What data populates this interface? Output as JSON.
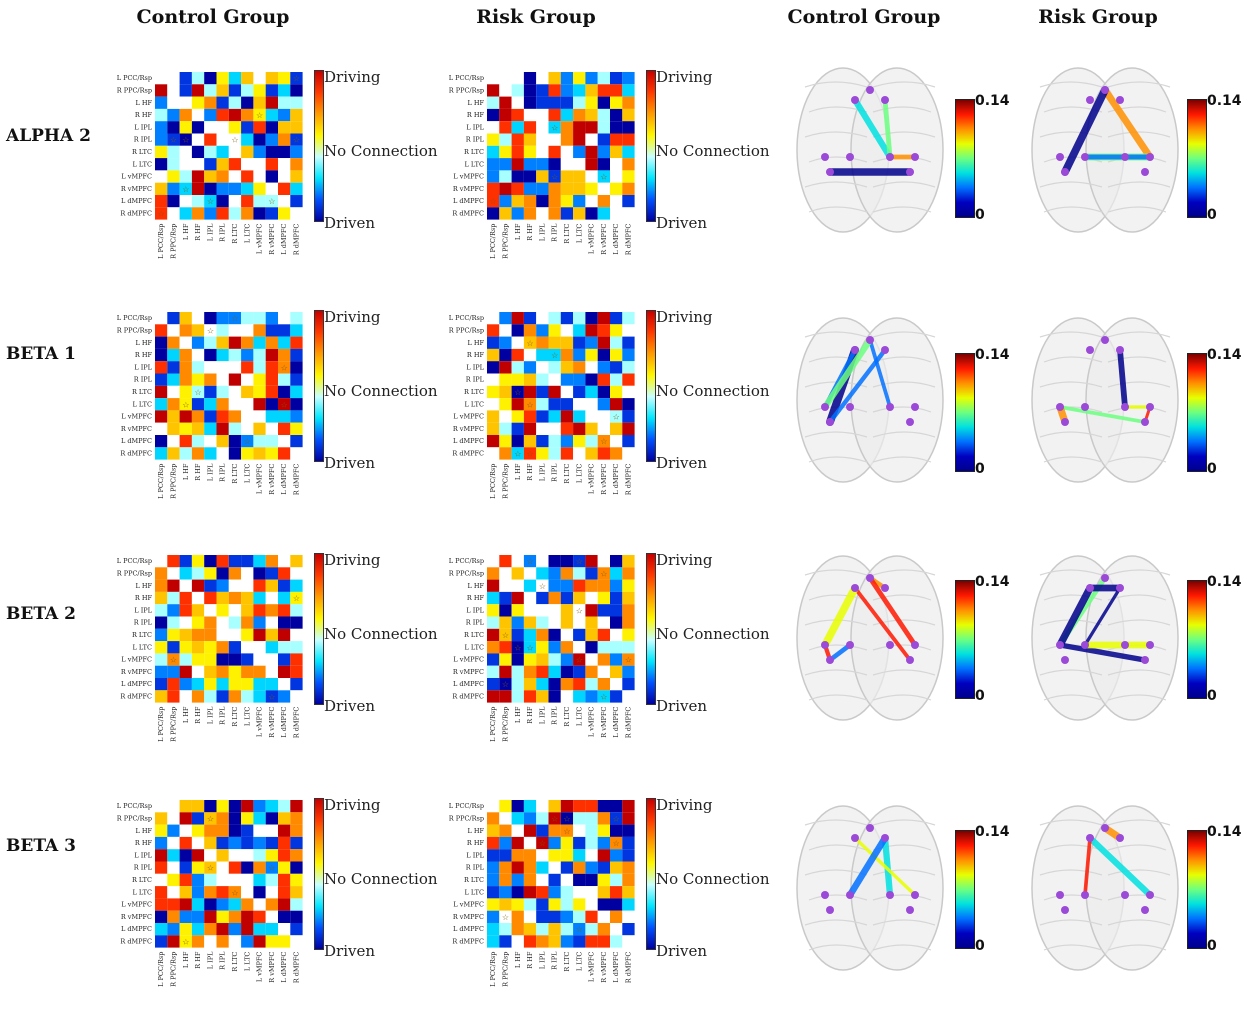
{
  "column_headers": [
    "Control Group",
    "Risk Group",
    "Control Group",
    "Risk Group"
  ],
  "bands": [
    "ALPHA 2",
    "BETA 1",
    "BETA 2",
    "BETA 3"
  ],
  "regions": [
    "L PCC/Rsp",
    "R PPC/Rsp",
    "L HF",
    "R HF",
    "L IPL",
    "R IPL",
    "R LTC",
    "L LTC",
    "L vMPFC",
    "R vMPFC",
    "L dMPFC",
    "R dMPFC"
  ],
  "matrix_colorbar": {
    "top": "Driving",
    "middle": "No Connection",
    "bottom": "Driven"
  },
  "brain_colorbar": {
    "max": "0.14",
    "min": "0"
  },
  "colors": {
    "driving": "#c80000",
    "no_connection": "#fff700",
    "driven": "#0000a0"
  }
}
